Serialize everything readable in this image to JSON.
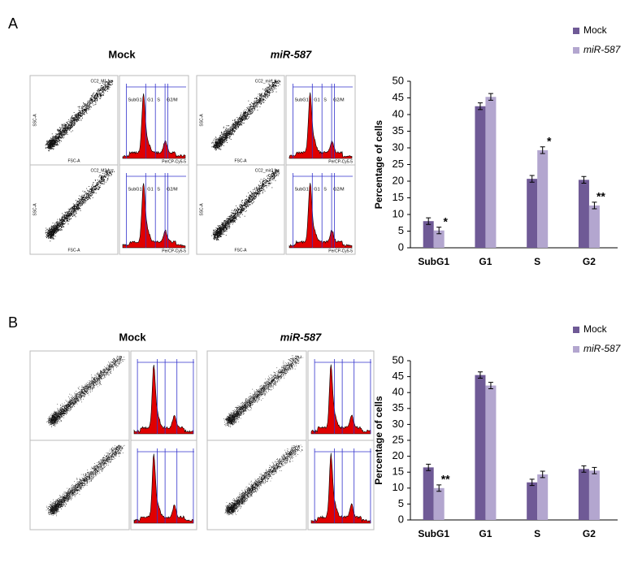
{
  "panels": [
    {
      "label": "A",
      "columns": [
        "Mock",
        "miR-587"
      ]
    },
    {
      "label": "B",
      "columns": [
        "Mock",
        "miR-587"
      ]
    }
  ],
  "flow": {
    "files": [
      "CC2_M1.fcs",
      "CC2_M2.fcs",
      "CC2_mir1.fcs",
      "CC2_mir2.fcs"
    ],
    "x_label": "FSC-A",
    "y_label": "SSC-A",
    "hist_label": "PerCP-Cy5-5",
    "gates": [
      "SubG1",
      "G1",
      "S",
      "G2/M"
    ]
  },
  "chart_data": [
    {
      "type": "bar",
      "ylabel": "Percentage of cells",
      "categories": [
        "SubG1",
        "G1",
        "S",
        "G2"
      ],
      "series": [
        {
          "name": "Mock",
          "color": "#6f5a96",
          "values": [
            8,
            42.5,
            20.7,
            20.4
          ],
          "errors": [
            1,
            1,
            1,
            1
          ],
          "significance": [
            null,
            null,
            null,
            null
          ]
        },
        {
          "name": "miR-587",
          "color": "#b3a6cf",
          "values": [
            5.2,
            45.3,
            29.3,
            12.7
          ],
          "errors": [
            1,
            1,
            1,
            1
          ],
          "significance": [
            "*",
            null,
            "*",
            "**"
          ]
        }
      ],
      "ylim": [
        0,
        50
      ],
      "yticks": [
        0,
        5,
        10,
        15,
        20,
        25,
        30,
        35,
        40,
        45,
        50
      ],
      "legend": "top-right"
    },
    {
      "type": "bar",
      "ylabel": "Percentage of cells",
      "categories": [
        "SubG1",
        "G1",
        "S",
        "G2"
      ],
      "series": [
        {
          "name": "Mock",
          "color": "#6f5a96",
          "values": [
            16.5,
            45.5,
            11.8,
            16
          ],
          "errors": [
            1,
            1,
            1,
            1
          ],
          "significance": [
            null,
            null,
            null,
            null
          ]
        },
        {
          "name": "miR-587",
          "color": "#b3a6cf",
          "values": [
            10,
            42.2,
            14.3,
            15.5
          ],
          "errors": [
            1,
            1,
            1,
            1
          ],
          "significance": [
            "**",
            null,
            null,
            null
          ]
        }
      ],
      "ylim": [
        0,
        50
      ],
      "yticks": [
        0,
        5,
        10,
        15,
        20,
        25,
        30,
        35,
        40,
        45,
        50
      ],
      "legend": "top-right"
    }
  ]
}
